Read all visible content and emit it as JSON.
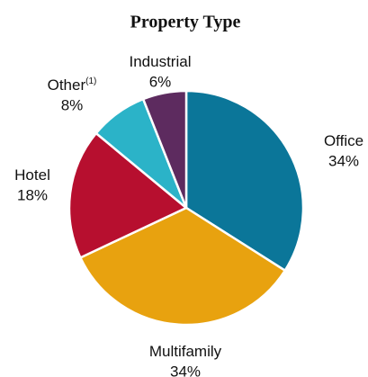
{
  "chart_data": {
    "type": "pie",
    "title": "Property Type",
    "categories": [
      "Office",
      "Multifamily",
      "Hotel",
      "Other",
      "Industrial"
    ],
    "category_notes": [
      null,
      null,
      null,
      "(1)",
      null
    ],
    "values": [
      34,
      34,
      18,
      8,
      6
    ],
    "value_labels": [
      "34%",
      "34%",
      "18%",
      "8%",
      "6%"
    ],
    "colors": [
      "#0b7699",
      "#e8a20f",
      "#b70f2f",
      "#2bb3c8",
      "#5d2b5f"
    ]
  }
}
